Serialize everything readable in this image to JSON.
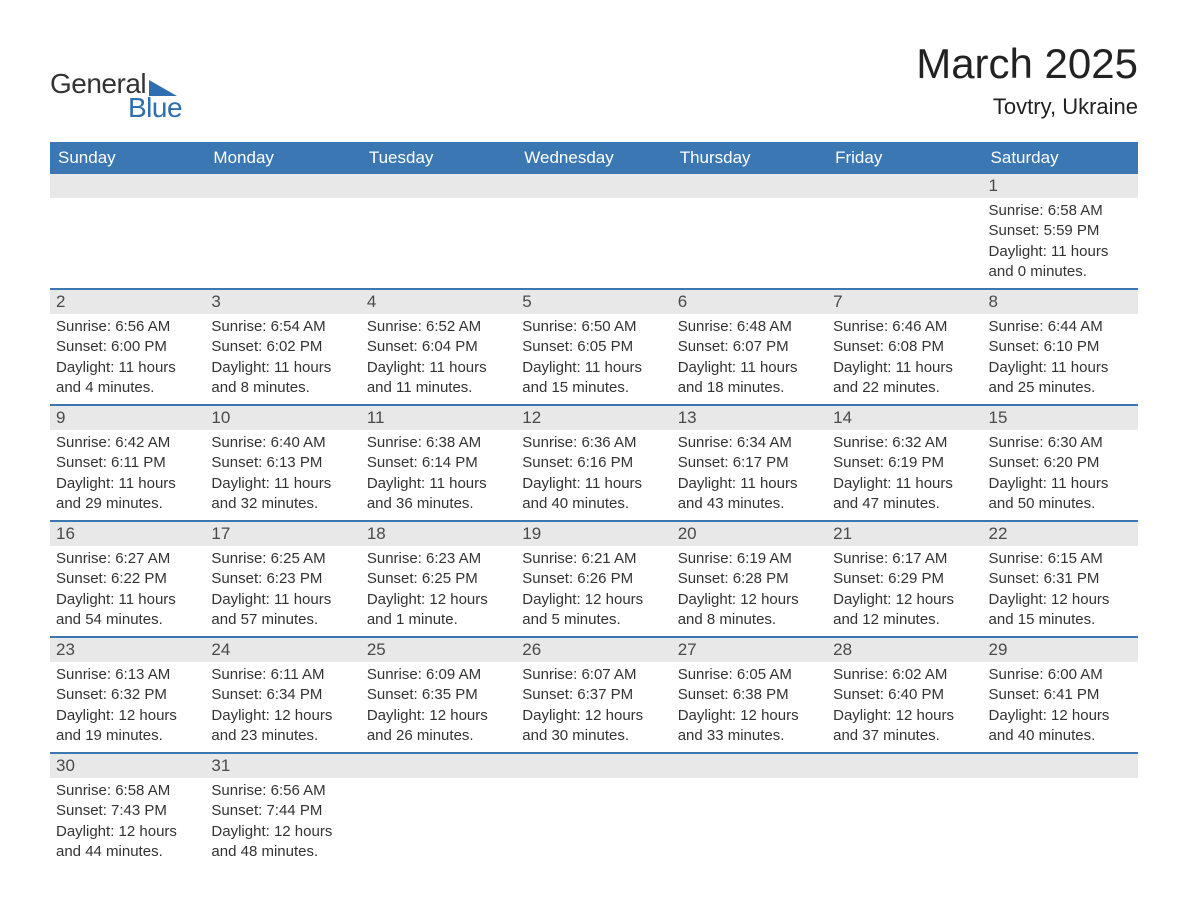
{
  "logo": {
    "text_general": "General",
    "text_blue": "Blue",
    "triangle_color": "#2d6fb0"
  },
  "header": {
    "month_title": "March 2025",
    "location": "Tovtry, Ukraine"
  },
  "calendar": {
    "type": "table",
    "header_bg": "#3a77b3",
    "header_text_color": "#ffffff",
    "daybar_bg": "#e8e8e8",
    "row_border_color": "#3a77b3",
    "body_text_color": "#333333",
    "columns": [
      "Sunday",
      "Monday",
      "Tuesday",
      "Wednesday",
      "Thursday",
      "Friday",
      "Saturday"
    ],
    "weeks": [
      [
        {
          "day": "",
          "sunrise": "",
          "sunset": "",
          "daylight": ""
        },
        {
          "day": "",
          "sunrise": "",
          "sunset": "",
          "daylight": ""
        },
        {
          "day": "",
          "sunrise": "",
          "sunset": "",
          "daylight": ""
        },
        {
          "day": "",
          "sunrise": "",
          "sunset": "",
          "daylight": ""
        },
        {
          "day": "",
          "sunrise": "",
          "sunset": "",
          "daylight": ""
        },
        {
          "day": "",
          "sunrise": "",
          "sunset": "",
          "daylight": ""
        },
        {
          "day": "1",
          "sunrise": "Sunrise: 6:58 AM",
          "sunset": "Sunset: 5:59 PM",
          "daylight": "Daylight: 11 hours and 0 minutes."
        }
      ],
      [
        {
          "day": "2",
          "sunrise": "Sunrise: 6:56 AM",
          "sunset": "Sunset: 6:00 PM",
          "daylight": "Daylight: 11 hours and 4 minutes."
        },
        {
          "day": "3",
          "sunrise": "Sunrise: 6:54 AM",
          "sunset": "Sunset: 6:02 PM",
          "daylight": "Daylight: 11 hours and 8 minutes."
        },
        {
          "day": "4",
          "sunrise": "Sunrise: 6:52 AM",
          "sunset": "Sunset: 6:04 PM",
          "daylight": "Daylight: 11 hours and 11 minutes."
        },
        {
          "day": "5",
          "sunrise": "Sunrise: 6:50 AM",
          "sunset": "Sunset: 6:05 PM",
          "daylight": "Daylight: 11 hours and 15 minutes."
        },
        {
          "day": "6",
          "sunrise": "Sunrise: 6:48 AM",
          "sunset": "Sunset: 6:07 PM",
          "daylight": "Daylight: 11 hours and 18 minutes."
        },
        {
          "day": "7",
          "sunrise": "Sunrise: 6:46 AM",
          "sunset": "Sunset: 6:08 PM",
          "daylight": "Daylight: 11 hours and 22 minutes."
        },
        {
          "day": "8",
          "sunrise": "Sunrise: 6:44 AM",
          "sunset": "Sunset: 6:10 PM",
          "daylight": "Daylight: 11 hours and 25 minutes."
        }
      ],
      [
        {
          "day": "9",
          "sunrise": "Sunrise: 6:42 AM",
          "sunset": "Sunset: 6:11 PM",
          "daylight": "Daylight: 11 hours and 29 minutes."
        },
        {
          "day": "10",
          "sunrise": "Sunrise: 6:40 AM",
          "sunset": "Sunset: 6:13 PM",
          "daylight": "Daylight: 11 hours and 32 minutes."
        },
        {
          "day": "11",
          "sunrise": "Sunrise: 6:38 AM",
          "sunset": "Sunset: 6:14 PM",
          "daylight": "Daylight: 11 hours and 36 minutes."
        },
        {
          "day": "12",
          "sunrise": "Sunrise: 6:36 AM",
          "sunset": "Sunset: 6:16 PM",
          "daylight": "Daylight: 11 hours and 40 minutes."
        },
        {
          "day": "13",
          "sunrise": "Sunrise: 6:34 AM",
          "sunset": "Sunset: 6:17 PM",
          "daylight": "Daylight: 11 hours and 43 minutes."
        },
        {
          "day": "14",
          "sunrise": "Sunrise: 6:32 AM",
          "sunset": "Sunset: 6:19 PM",
          "daylight": "Daylight: 11 hours and 47 minutes."
        },
        {
          "day": "15",
          "sunrise": "Sunrise: 6:30 AM",
          "sunset": "Sunset: 6:20 PM",
          "daylight": "Daylight: 11 hours and 50 minutes."
        }
      ],
      [
        {
          "day": "16",
          "sunrise": "Sunrise: 6:27 AM",
          "sunset": "Sunset: 6:22 PM",
          "daylight": "Daylight: 11 hours and 54 minutes."
        },
        {
          "day": "17",
          "sunrise": "Sunrise: 6:25 AM",
          "sunset": "Sunset: 6:23 PM",
          "daylight": "Daylight: 11 hours and 57 minutes."
        },
        {
          "day": "18",
          "sunrise": "Sunrise: 6:23 AM",
          "sunset": "Sunset: 6:25 PM",
          "daylight": "Daylight: 12 hours and 1 minute."
        },
        {
          "day": "19",
          "sunrise": "Sunrise: 6:21 AM",
          "sunset": "Sunset: 6:26 PM",
          "daylight": "Daylight: 12 hours and 5 minutes."
        },
        {
          "day": "20",
          "sunrise": "Sunrise: 6:19 AM",
          "sunset": "Sunset: 6:28 PM",
          "daylight": "Daylight: 12 hours and 8 minutes."
        },
        {
          "day": "21",
          "sunrise": "Sunrise: 6:17 AM",
          "sunset": "Sunset: 6:29 PM",
          "daylight": "Daylight: 12 hours and 12 minutes."
        },
        {
          "day": "22",
          "sunrise": "Sunrise: 6:15 AM",
          "sunset": "Sunset: 6:31 PM",
          "daylight": "Daylight: 12 hours and 15 minutes."
        }
      ],
      [
        {
          "day": "23",
          "sunrise": "Sunrise: 6:13 AM",
          "sunset": "Sunset: 6:32 PM",
          "daylight": "Daylight: 12 hours and 19 minutes."
        },
        {
          "day": "24",
          "sunrise": "Sunrise: 6:11 AM",
          "sunset": "Sunset: 6:34 PM",
          "daylight": "Daylight: 12 hours and 23 minutes."
        },
        {
          "day": "25",
          "sunrise": "Sunrise: 6:09 AM",
          "sunset": "Sunset: 6:35 PM",
          "daylight": "Daylight: 12 hours and 26 minutes."
        },
        {
          "day": "26",
          "sunrise": "Sunrise: 6:07 AM",
          "sunset": "Sunset: 6:37 PM",
          "daylight": "Daylight: 12 hours and 30 minutes."
        },
        {
          "day": "27",
          "sunrise": "Sunrise: 6:05 AM",
          "sunset": "Sunset: 6:38 PM",
          "daylight": "Daylight: 12 hours and 33 minutes."
        },
        {
          "day": "28",
          "sunrise": "Sunrise: 6:02 AM",
          "sunset": "Sunset: 6:40 PM",
          "daylight": "Daylight: 12 hours and 37 minutes."
        },
        {
          "day": "29",
          "sunrise": "Sunrise: 6:00 AM",
          "sunset": "Sunset: 6:41 PM",
          "daylight": "Daylight: 12 hours and 40 minutes."
        }
      ],
      [
        {
          "day": "30",
          "sunrise": "Sunrise: 6:58 AM",
          "sunset": "Sunset: 7:43 PM",
          "daylight": "Daylight: 12 hours and 44 minutes."
        },
        {
          "day": "31",
          "sunrise": "Sunrise: 6:56 AM",
          "sunset": "Sunset: 7:44 PM",
          "daylight": "Daylight: 12 hours and 48 minutes."
        },
        {
          "day": "",
          "sunrise": "",
          "sunset": "",
          "daylight": ""
        },
        {
          "day": "",
          "sunrise": "",
          "sunset": "",
          "daylight": ""
        },
        {
          "day": "",
          "sunrise": "",
          "sunset": "",
          "daylight": ""
        },
        {
          "day": "",
          "sunrise": "",
          "sunset": "",
          "daylight": ""
        },
        {
          "day": "",
          "sunrise": "",
          "sunset": "",
          "daylight": ""
        }
      ]
    ]
  }
}
